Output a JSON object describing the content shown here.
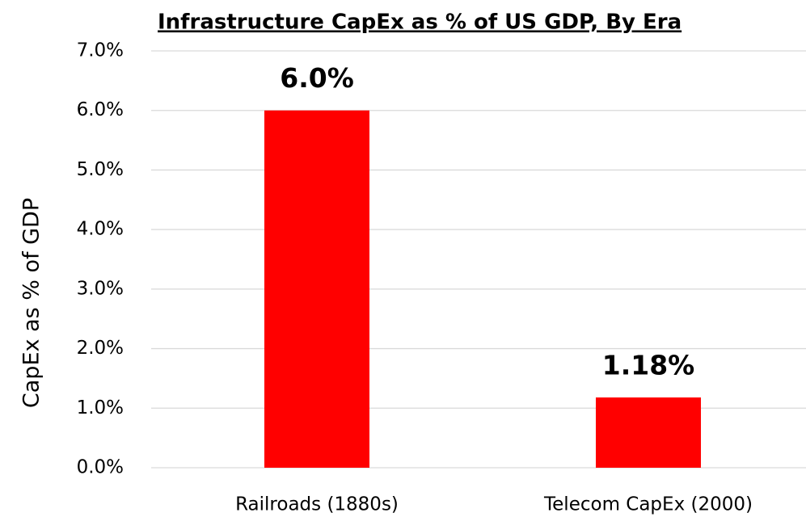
{
  "chart_data": {
    "type": "bar",
    "title": "Infrastructure CapEx as % of US GDP, By Era",
    "y_label": "CapEx  as % of GDP",
    "categories": [
      "Railroads (1880s)",
      "Telecom CapEx (2000)"
    ],
    "values": [
      6.0,
      1.18
    ],
    "value_labels": [
      "6.0%",
      "1.18%"
    ],
    "color": "#ff0000",
    "ylim": [
      0,
      7
    ],
    "yticks": [
      {
        "value": 0,
        "label": "0.0%"
      },
      {
        "value": 1,
        "label": "1.0%"
      },
      {
        "value": 2,
        "label": "2.0%"
      },
      {
        "value": 3,
        "label": "3.0%"
      },
      {
        "value": 4,
        "label": "4.0%"
      },
      {
        "value": 5,
        "label": "5.0%"
      },
      {
        "value": 6,
        "label": "6.0%"
      },
      {
        "value": 7,
        "label": "7.0%"
      }
    ],
    "grid": true
  }
}
